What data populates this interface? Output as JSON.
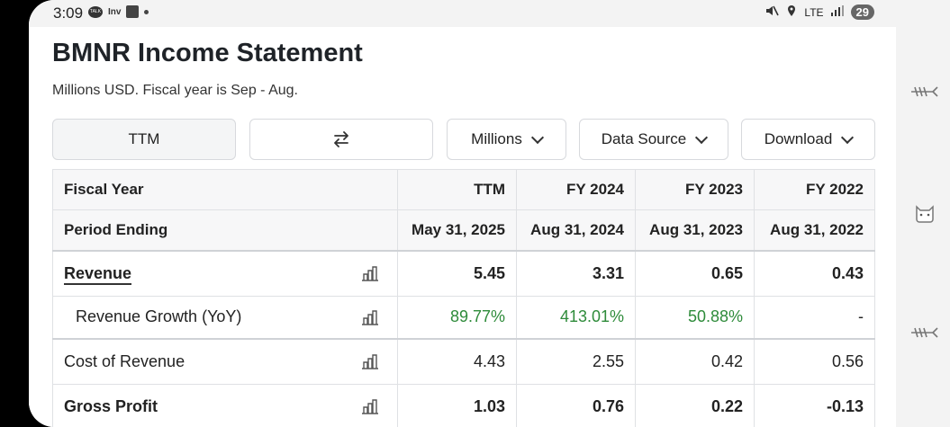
{
  "status_bar": {
    "time": "3:09",
    "talk_icon_text": "TALK",
    "inv_text": "Inv",
    "network": "LTE",
    "battery": "29"
  },
  "page": {
    "title": "BMNR Income Statement",
    "subtitle": "Millions USD. Fiscal year is Sep - Aug."
  },
  "toolbar": {
    "period_label": "TTM",
    "swap_icon": "swap-arrows-icon",
    "units_label": "Millions",
    "data_source_label": "Data Source",
    "download_label": "Download"
  },
  "table": {
    "fiscal_year_label": "Fiscal Year",
    "period_ending_label": "Period Ending",
    "columns": [
      {
        "year": "TTM",
        "ending": "May 31, 2025"
      },
      {
        "year": "FY 2024",
        "ending": "Aug 31, 2024"
      },
      {
        "year": "FY 2023",
        "ending": "Aug 31, 2023"
      },
      {
        "year": "FY 2022",
        "ending": "Aug 31, 2022"
      }
    ],
    "rows": [
      {
        "label": "Revenue",
        "values": [
          "5.45",
          "3.31",
          "0.65",
          "0.43"
        ]
      },
      {
        "label": "Revenue Growth (YoY)",
        "values": [
          "89.77%",
          "413.01%",
          "50.88%",
          "-"
        ]
      },
      {
        "label": "Cost of Revenue",
        "values": [
          "4.43",
          "2.55",
          "0.42",
          "0.56"
        ]
      },
      {
        "label": "Gross Profit",
        "values": [
          "1.03",
          "0.76",
          "0.22",
          "-0.13"
        ]
      }
    ]
  },
  "colors": {
    "positive_growth": "#2e8b3a"
  }
}
